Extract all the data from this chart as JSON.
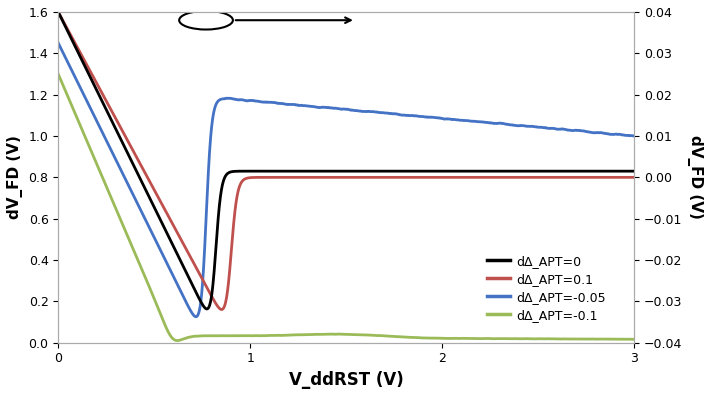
{
  "title": "",
  "xlabel": "V_ddRST (V)",
  "ylabel_left": "dV_FD (V)",
  "ylabel_right": "dV_FD (V)",
  "xlim": [
    0,
    3
  ],
  "ylim_left": [
    0,
    1.6
  ],
  "ylim_right": [
    -0.04,
    0.04
  ],
  "xticks": [
    0,
    1,
    2,
    3
  ],
  "yticks_left": [
    0,
    0.2,
    0.4,
    0.6,
    0.8,
    1.0,
    1.2,
    1.4,
    1.6
  ],
  "yticks_right": [
    -0.04,
    -0.03,
    -0.02,
    -0.01,
    0,
    0.01,
    0.02,
    0.03,
    0.04
  ],
  "colors": {
    "black": "#000000",
    "red": "#c0504d",
    "blue": "#4472c4",
    "green": "#9bbb59"
  },
  "legend_labels": [
    "dΔ_APT=0",
    "dΔ_APT=0.1",
    "dΔ_APT=-0.05",
    "dΔ_APT=-0.1"
  ],
  "background_color": "#ffffff"
}
